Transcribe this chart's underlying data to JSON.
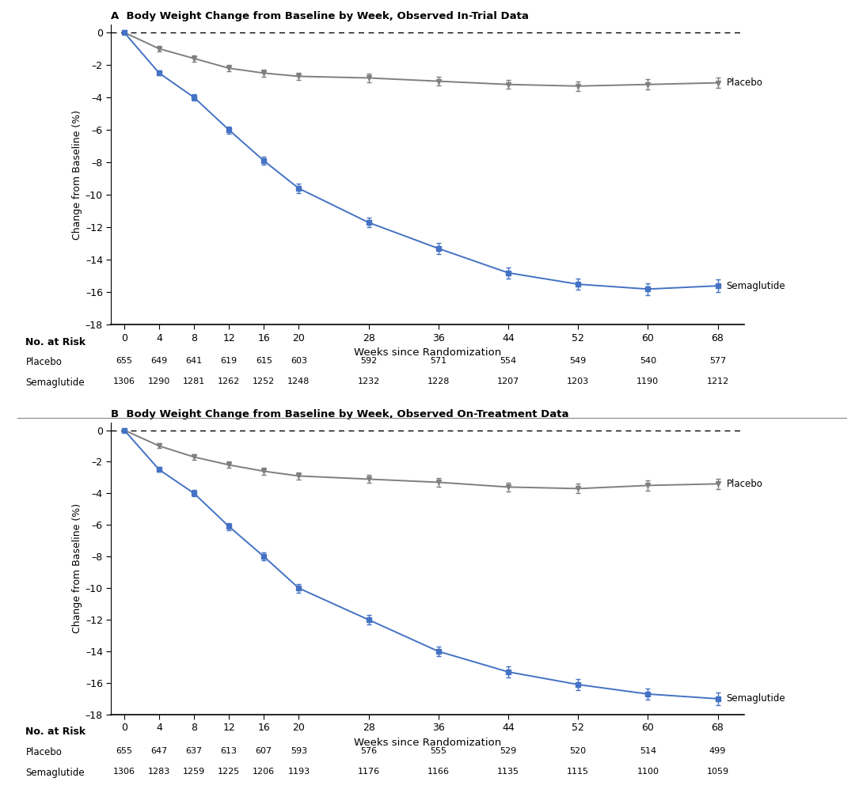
{
  "panel_A": {
    "title": "A  Body Weight Change from Baseline by Week, Observed In-Trial Data",
    "sema_x": [
      0,
      4,
      8,
      12,
      16,
      20,
      28,
      36,
      44,
      52,
      60,
      68
    ],
    "sema_y": [
      0,
      -2.5,
      -4.0,
      -6.0,
      -7.9,
      -9.6,
      -11.7,
      -13.3,
      -14.8,
      -15.5,
      -15.8,
      -15.6
    ],
    "sema_err": [
      0.0,
      0.15,
      0.2,
      0.22,
      0.25,
      0.27,
      0.3,
      0.32,
      0.35,
      0.35,
      0.37,
      0.38
    ],
    "placebo_x": [
      0,
      4,
      8,
      12,
      16,
      20,
      28,
      36,
      44,
      52,
      60,
      68
    ],
    "placebo_y": [
      0,
      -1.0,
      -1.6,
      -2.2,
      -2.5,
      -2.7,
      -2.8,
      -3.0,
      -3.2,
      -3.3,
      -3.2,
      -3.1
    ],
    "placebo_err": [
      0.0,
      0.15,
      0.18,
      0.2,
      0.22,
      0.23,
      0.25,
      0.27,
      0.28,
      0.3,
      0.32,
      0.33
    ],
    "placebo_risk": [
      655,
      649,
      641,
      619,
      615,
      603,
      592,
      571,
      554,
      549,
      540,
      577
    ],
    "sema_risk": [
      1306,
      1290,
      1281,
      1262,
      1252,
      1248,
      1232,
      1228,
      1207,
      1203,
      1190,
      1212
    ]
  },
  "panel_B": {
    "title": "B  Body Weight Change from Baseline by Week, Observed On-Treatment Data",
    "sema_x": [
      0,
      4,
      8,
      12,
      16,
      20,
      28,
      36,
      44,
      52,
      60,
      68
    ],
    "sema_y": [
      0,
      -2.5,
      -4.0,
      -6.1,
      -8.0,
      -10.0,
      -12.0,
      -14.0,
      -15.3,
      -16.1,
      -16.7,
      -17.0
    ],
    "sema_err": [
      0.0,
      0.15,
      0.2,
      0.22,
      0.25,
      0.27,
      0.3,
      0.32,
      0.35,
      0.35,
      0.37,
      0.38
    ],
    "placebo_x": [
      0,
      4,
      8,
      12,
      16,
      20,
      28,
      36,
      44,
      52,
      60,
      68
    ],
    "placebo_y": [
      0,
      -1.0,
      -1.7,
      -2.2,
      -2.6,
      -2.9,
      -3.1,
      -3.3,
      -3.6,
      -3.7,
      -3.5,
      -3.4
    ],
    "placebo_err": [
      0.0,
      0.15,
      0.18,
      0.2,
      0.22,
      0.23,
      0.25,
      0.27,
      0.28,
      0.3,
      0.32,
      0.33
    ],
    "placebo_risk": [
      655,
      647,
      637,
      613,
      607,
      593,
      576,
      555,
      529,
      520,
      514,
      499
    ],
    "sema_risk": [
      1306,
      1283,
      1259,
      1225,
      1206,
      1193,
      1176,
      1166,
      1135,
      1115,
      1100,
      1059
    ]
  },
  "sema_color": "#4472C4",
  "placebo_color": "#7F7F7F",
  "xlabel": "Weeks since Randomization",
  "ylabel": "Change from Baseline (%)",
  "ylim": [
    -18,
    0.5
  ],
  "yticks": [
    0,
    -2,
    -4,
    -6,
    -8,
    -10,
    -12,
    -14,
    -16,
    -18
  ],
  "ytick_labels": [
    "0",
    "–2",
    "–4",
    "–6",
    "–8",
    "–10",
    "–12",
    "–14",
    "–16",
    "–18"
  ],
  "xticks": [
    0,
    4,
    8,
    12,
    16,
    20,
    28,
    36,
    44,
    52,
    60,
    68
  ],
  "no_at_risk_label": "No. at Risk",
  "placebo_label": "Placebo",
  "sema_label": "Semaglutide",
  "bg_color": "#ffffff",
  "separator_line_color": "#888888"
}
